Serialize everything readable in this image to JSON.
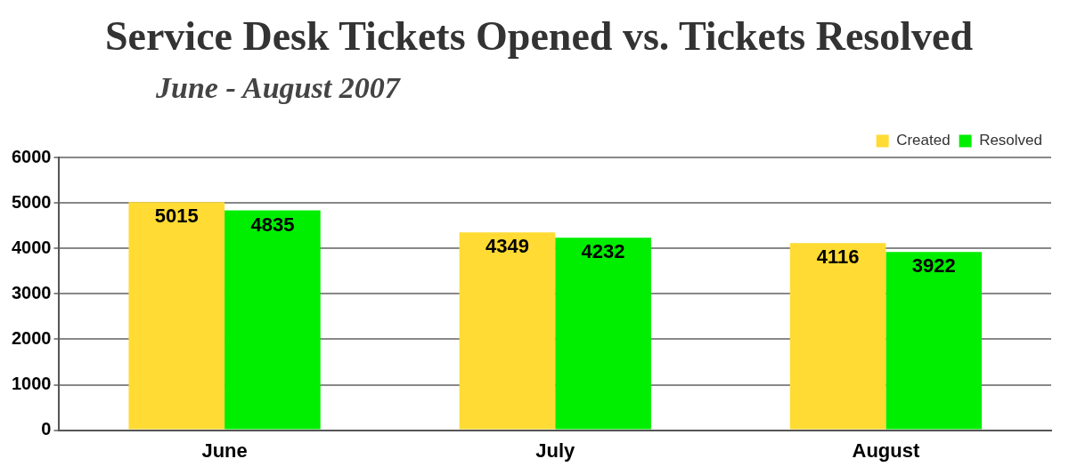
{
  "chart_data": {
    "type": "bar",
    "title": "Service Desk Tickets Opened vs. Tickets Resolved",
    "subtitle": "June - August 2007",
    "categories": [
      "June",
      "July",
      "August"
    ],
    "series": [
      {
        "name": "Created",
        "color": "#ffdb33",
        "values": [
          5015,
          4349,
          4116
        ]
      },
      {
        "name": "Resolved",
        "color": "#00ee00",
        "values": [
          4835,
          4232,
          3922
        ]
      }
    ],
    "ylim": [
      0,
      6000
    ],
    "yticks": [
      0,
      1000,
      2000,
      3000,
      4000,
      5000,
      6000
    ],
    "grid": "y",
    "legend": "top right",
    "data_labels": true
  }
}
